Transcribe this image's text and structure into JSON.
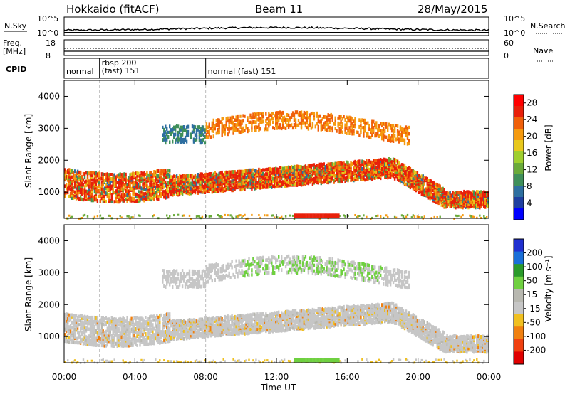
{
  "header": {
    "site": "Hokkaido (fitACF)",
    "beam": "Beam 11",
    "date": "28/May/2015"
  },
  "top_panels": {
    "nsky_label": "N.Sky",
    "nsky_ticks": [
      "10^5",
      "10^0"
    ],
    "nsearch_label": "N.Search",
    "nsearch_ticks": [
      "10^5",
      "10^0"
    ],
    "freq_label": "Freq.",
    "freq_unit": "[MHz]",
    "freq_ticks": [
      "18",
      "8"
    ],
    "nave_label": "Nave",
    "nave_ticks": [
      "60",
      "0"
    ],
    "cpid_label": "CPID",
    "cpid_segments": [
      {
        "start_hour": 0.0,
        "end_hour": 2.0,
        "label": "normal"
      },
      {
        "start_hour": 2.0,
        "end_hour": 8.0,
        "label": "rbsp 200\n(fast) 151"
      },
      {
        "start_hour": 8.0,
        "end_hour": 24.0,
        "label": "normal (fast)  151"
      }
    ]
  },
  "colors": {
    "power": [
      "#0000ff",
      "#1f3fa0",
      "#2e6fa0",
      "#3f8f5a",
      "#6aaa3a",
      "#9fcf2f",
      "#e8c81c",
      "#f59a10",
      "#f0600a",
      "#e8200a",
      "#ff0000"
    ],
    "velocity": [
      "#2030d0",
      "#1a6fd8",
      "#2a9a2a",
      "#6fd040",
      "#b8b8b0",
      "#c6c6c6",
      "#f0c020",
      "#f08010",
      "#f04010",
      "#e00000"
    ]
  },
  "chart_data": [
    {
      "type": "heatmap",
      "title": "",
      "xlabel": "Time UT",
      "ylabel": "Slant Range [km]",
      "x_ticks": [
        "00:00",
        "04:00",
        "08:00",
        "12:00",
        "16:00",
        "20:00",
        "00:00"
      ],
      "xlim_hours": [
        0,
        24
      ],
      "y_ticks": [
        1000,
        2000,
        3000,
        4000
      ],
      "ylim": [
        180,
        4500
      ],
      "colorbar": {
        "label": "Power [dB]",
        "ticks": [
          4,
          8,
          12,
          16,
          20,
          24,
          28
        ],
        "range": [
          0,
          30
        ]
      },
      "features": [
        {
          "name": "backscatter band 1",
          "hour_start": 0,
          "hour_end": 21.5,
          "range_center_km": 1400,
          "range_width_km": 700,
          "power_db": 22
        },
        {
          "name": "backscatter band 2",
          "hour_start": 5.5,
          "hour_end": 19.5,
          "range_center_km": 3100,
          "range_width_km": 400,
          "power_db": 20
        },
        {
          "name": "ground scatter bottom",
          "hour_start": 13,
          "hour_end": 15.5,
          "range_center_km": 250,
          "range_width_km": 80,
          "power_db": 28
        }
      ]
    },
    {
      "type": "heatmap",
      "title": "",
      "xlabel": "Time UT",
      "ylabel": "Slant Range [km]",
      "x_ticks": [
        "00:00",
        "04:00",
        "08:00",
        "12:00",
        "16:00",
        "20:00",
        "00:00"
      ],
      "xlim_hours": [
        0,
        24
      ],
      "y_ticks": [
        1000,
        2000,
        3000,
        4000
      ],
      "ylim": [
        180,
        4500
      ],
      "colorbar": {
        "label": "Velocity [m s⁻¹]",
        "ticks": [
          200,
          100,
          50,
          15,
          -15,
          -50,
          -100,
          -200
        ],
        "range": [
          -250,
          250
        ]
      },
      "features": [
        {
          "name": "near-zero velocity band",
          "hour_start": 0,
          "hour_end": 24,
          "range_center_km": 1400,
          "range_width_km": 800,
          "velocity_ms": 0
        },
        {
          "name": "positive velocity patches",
          "hour_start": 9.5,
          "hour_end": 19,
          "range_center_km": 3200,
          "range_width_km": 400,
          "velocity_ms": 40
        }
      ]
    }
  ],
  "axis_labels": {
    "time_ut": "Time UT"
  }
}
